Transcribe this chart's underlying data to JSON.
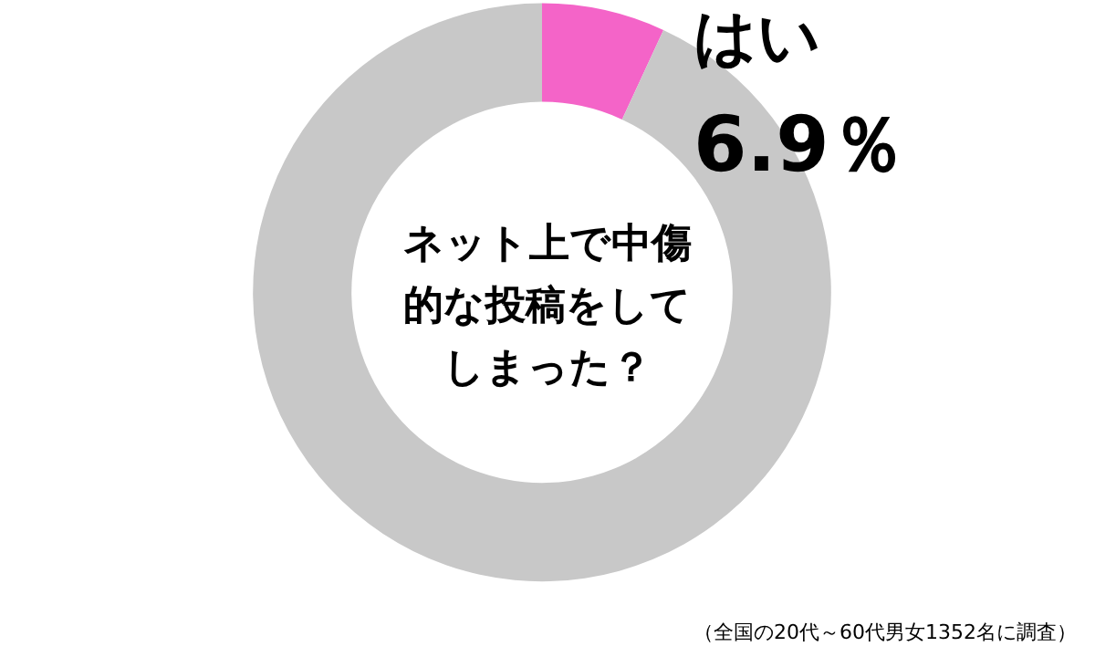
{
  "chart_data": {
    "type": "donut",
    "title": "ネット上で中傷的な投稿をしてしまった？",
    "categories": [
      "はい",
      null
    ],
    "values": [
      6.9,
      93.1
    ],
    "value_labels": [
      "6.9％",
      null
    ],
    "colors": [
      "#f464c8",
      "#c8c8c8"
    ],
    "legend": false,
    "annotations": [
      "（全国の20代～60代男女1352名に調査）"
    ]
  }
}
